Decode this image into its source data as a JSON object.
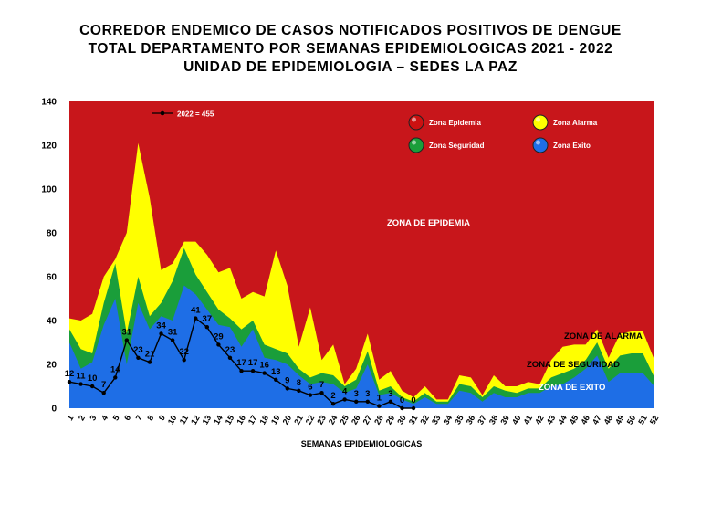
{
  "title_lines": [
    "CORREDOR ENDEMICO DE CASOS NOTIFICADOS POSITIVOS DE DENGUE",
    "TOTAL DEPARTAMENTO POR SEMANAS EPIDEMIOLOGICAS 2021 - 2022",
    "UNIDAD DE EPIDEMIOLOGIA – SEDES LA PAZ"
  ],
  "chart_data": {
    "type": "area",
    "title": "CORREDOR ENDEMICO DE CASOS NOTIFICADOS POSITIVOS DE DENGUE TOTAL DEPARTAMENTO POR SEMANAS EPIDEMIOLOGICAS 2021 - 2022 UNIDAD DE EPIDEMIOLOGIA – SEDES LA PAZ",
    "xlabel": "SEMANAS EPIDEMIOLOGICAS",
    "ylabel": "",
    "ylim": [
      0,
      140
    ],
    "yticks": [
      0,
      20,
      40,
      60,
      80,
      100,
      120,
      140
    ],
    "grid": false,
    "x": [
      1,
      2,
      3,
      4,
      5,
      6,
      7,
      8,
      9,
      10,
      11,
      12,
      13,
      14,
      15,
      16,
      17,
      18,
      19,
      20,
      21,
      22,
      23,
      24,
      25,
      26,
      27,
      28,
      29,
      30,
      31,
      32,
      33,
      34,
      35,
      36,
      37,
      38,
      39,
      40,
      41,
      42,
      43,
      44,
      45,
      46,
      47,
      48,
      49,
      50,
      51,
      52
    ],
    "legend": [
      {
        "name": "Zona Epidemia",
        "color": "#cc1111"
      },
      {
        "name": "Zona Alarma",
        "color": "#ffff00"
      },
      {
        "name": "Zona Seguridad",
        "color": "#1a9e3a"
      },
      {
        "name": "Zona Exito",
        "color": "#1e6ee6"
      }
    ],
    "zones": {
      "epidemia": {
        "label": "ZONA DE EPIDEMIA",
        "color": "#c8161b",
        "upper": 140
      },
      "alarma": {
        "label": "ZONA DE ALARMA",
        "color": "#ffff00",
        "values": [
          41,
          40,
          43,
          60,
          68,
          80,
          121,
          96,
          63,
          66,
          76,
          76,
          70,
          62,
          64,
          50,
          53,
          51,
          72,
          56,
          28,
          46,
          22,
          29,
          11,
          18,
          34,
          13,
          17,
          8,
          5,
          10,
          4,
          4,
          15,
          14,
          6,
          15,
          10,
          10,
          12,
          11,
          22,
          28,
          29,
          29,
          36,
          23,
          34,
          35,
          35,
          22
        ]
      },
      "seguridad": {
        "label": "ZONA DE  SEGURIDAD",
        "color": "#1a9e3a",
        "values": [
          36,
          27,
          25,
          48,
          66,
          34,
          60,
          42,
          48,
          58,
          73,
          61,
          53,
          45,
          41,
          36,
          40,
          29,
          27,
          25,
          18,
          14,
          16,
          15,
          10,
          13,
          26,
          8,
          10,
          5,
          3,
          7,
          3,
          3,
          11,
          10,
          5,
          10,
          8,
          7,
          9,
          9,
          14,
          16,
          18,
          22,
          30,
          18,
          24,
          25,
          25,
          14
        ]
      },
      "exito": {
        "label": "ZONA DE  EXITO",
        "color": "#1e6ee6",
        "values": [
          30,
          18,
          21,
          38,
          50,
          20,
          48,
          36,
          42,
          40,
          56,
          52,
          45,
          38,
          37,
          28,
          36,
          23,
          22,
          20,
          15,
          11,
          12,
          11,
          7,
          9,
          20,
          6,
          7,
          4,
          2,
          5,
          2,
          2,
          8,
          7,
          3,
          7,
          5,
          5,
          7,
          7,
          10,
          11,
          14,
          18,
          24,
          12,
          16,
          16,
          16,
          10
        ]
      }
    },
    "series": [
      {
        "name": "2022 = 455",
        "color": "#000000",
        "x": [
          1,
          2,
          3,
          4,
          5,
          6,
          7,
          8,
          9,
          10,
          11,
          12,
          13,
          14,
          15,
          16,
          17,
          18,
          19,
          20,
          21,
          22,
          23,
          24,
          25,
          26,
          27,
          28,
          29,
          30,
          31
        ],
        "values": [
          12,
          11,
          10,
          7,
          14,
          31,
          23,
          21,
          34,
          31,
          22,
          41,
          37,
          29,
          23,
          17,
          17,
          16,
          13,
          9,
          8,
          6,
          7,
          2,
          4,
          3,
          3,
          1,
          3,
          0,
          0
        ]
      }
    ]
  }
}
